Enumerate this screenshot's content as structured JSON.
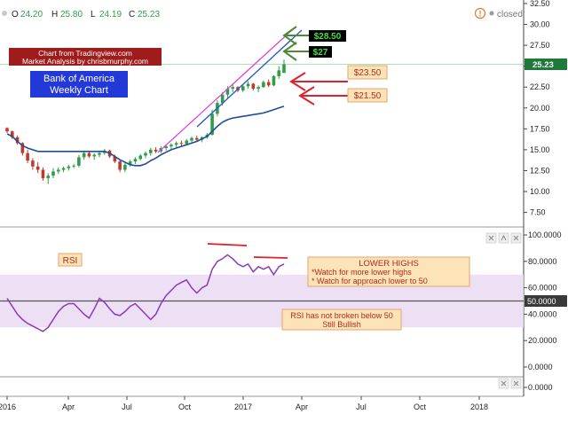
{
  "header": {
    "open_label": "O",
    "open": "24.20",
    "high_label": "H",
    "high": "25.80",
    "low_label": "L",
    "low": "24.19",
    "close_label": "C",
    "close": "25.23",
    "status": "closed",
    "status_icon": "warning-circle-icon"
  },
  "colors": {
    "up": "#2e9e46",
    "down": "#c0392b",
    "ema": "#1f4e99",
    "rsi": "#8b3ab8",
    "rsi_band": "#ead9f2",
    "trend": "#2e58c9",
    "channel": "#e23be0",
    "red_arrow": "#e0202a",
    "green_arrow": "#4d8a34",
    "price_tag": "#1e7a3a"
  },
  "annotations": {
    "credit_line1": "Chart from Tradingview.com",
    "credit_line2": "Market Analysis by chrisbmurphy.com",
    "title_line1": "Bank of America",
    "title_line2": "Weekly Chart",
    "target_high": "$28.50",
    "target_mid": "$27",
    "support_1": "$23.50",
    "support_2": "$21.50",
    "current_price": "25.23",
    "rsi_label": "RSI",
    "rsi_note_title": "LOWER HIGHS",
    "rsi_note_line1": "*Watch for more lower highs",
    "rsi_note_line2": "* Watch for approach lower to 50",
    "rsi_note2_line1": "RSI has not broken below 50",
    "rsi_note2_line2": "Still Bullish",
    "rsi_level_tag": "50.0000"
  },
  "chart_data": {
    "type": "candlestick",
    "title": "Bank of America Weekly Chart",
    "x_tick_labels": [
      "2016",
      "Apr",
      "Jul",
      "Oct",
      "2017",
      "Apr",
      "Jul",
      "Oct",
      "2018"
    ],
    "price_axis": {
      "range": [
        6.5,
        32.5
      ],
      "ticks": [
        "32.50",
        "30.00",
        "27.50",
        "25.00",
        "22.50",
        "20.00",
        "17.50",
        "15.00",
        "12.50",
        "10.00",
        "7.50"
      ]
    },
    "rsi_axis": {
      "range": [
        0,
        100
      ],
      "ticks": [
        "100.0000",
        "80.0000",
        "60.0000",
        "40.0000",
        "20.0000",
        "0.0000"
      ],
      "band": [
        30,
        70
      ],
      "midline": 50
    },
    "extra_axis_ticks": [
      "0.0000"
    ],
    "candles": [
      [
        17.6,
        17.7,
        17.0,
        17.2
      ],
      [
        17.2,
        17.3,
        16.3,
        16.5
      ],
      [
        16.5,
        16.7,
        15.6,
        15.8
      ],
      [
        15.8,
        15.9,
        14.3,
        14.6
      ],
      [
        14.6,
        15.0,
        13.4,
        13.7
      ],
      [
        13.7,
        14.0,
        12.6,
        13.0
      ],
      [
        13.0,
        13.5,
        12.2,
        12.6
      ],
      [
        12.6,
        12.9,
        11.3,
        11.6
      ],
      [
        11.6,
        12.2,
        10.9,
        11.9
      ],
      [
        11.9,
        12.8,
        11.6,
        12.4
      ],
      [
        12.4,
        12.9,
        12.1,
        12.6
      ],
      [
        12.6,
        13.0,
        12.3,
        12.8
      ],
      [
        12.8,
        13.2,
        12.5,
        13.0
      ],
      [
        13.0,
        13.3,
        12.8,
        13.1
      ],
      [
        13.1,
        14.4,
        12.9,
        14.1
      ],
      [
        14.1,
        14.9,
        13.8,
        14.6
      ],
      [
        14.6,
        14.8,
        14.0,
        14.2
      ],
      [
        14.2,
        14.6,
        13.8,
        14.4
      ],
      [
        14.4,
        14.9,
        14.1,
        14.6
      ],
      [
        14.6,
        15.1,
        14.4,
        14.9
      ],
      [
        14.9,
        15.0,
        14.0,
        14.2
      ],
      [
        14.2,
        14.4,
        13.4,
        13.6
      ],
      [
        13.6,
        13.8,
        12.3,
        12.6
      ],
      [
        12.6,
        13.4,
        12.3,
        13.2
      ],
      [
        13.2,
        13.8,
        13.0,
        13.6
      ],
      [
        13.6,
        14.1,
        13.3,
        13.9
      ],
      [
        13.9,
        14.5,
        13.7,
        14.3
      ],
      [
        14.3,
        14.8,
        14.0,
        14.6
      ],
      [
        14.6,
        15.2,
        14.3,
        15.0
      ],
      [
        15.0,
        15.3,
        14.6,
        14.8
      ],
      [
        14.8,
        15.4,
        14.6,
        15.2
      ],
      [
        15.2,
        15.6,
        14.9,
        15.4
      ],
      [
        15.4,
        15.8,
        15.1,
        15.6
      ],
      [
        15.6,
        16.0,
        15.3,
        15.8
      ],
      [
        15.8,
        16.1,
        15.4,
        15.7
      ],
      [
        15.7,
        16.3,
        15.5,
        16.1
      ],
      [
        16.1,
        16.6,
        15.9,
        16.4
      ],
      [
        16.4,
        16.7,
        16.0,
        16.2
      ],
      [
        16.2,
        16.6,
        15.9,
        16.5
      ],
      [
        16.5,
        17.0,
        16.3,
        16.8
      ],
      [
        16.8,
        19.8,
        16.7,
        19.3
      ],
      [
        19.3,
        20.9,
        19.0,
        20.6
      ],
      [
        20.6,
        21.9,
        20.3,
        21.6
      ],
      [
        21.6,
        22.6,
        21.2,
        22.3
      ],
      [
        22.3,
        22.9,
        21.9,
        22.5
      ],
      [
        22.5,
        22.6,
        21.9,
        22.1
      ],
      [
        22.1,
        22.8,
        21.9,
        22.6
      ],
      [
        22.6,
        23.2,
        22.3,
        22.9
      ],
      [
        22.9,
        23.0,
        22.1,
        22.3
      ],
      [
        22.3,
        22.7,
        21.9,
        22.5
      ],
      [
        22.5,
        23.3,
        22.4,
        23.1
      ],
      [
        23.1,
        23.4,
        22.5,
        22.7
      ],
      [
        22.7,
        23.9,
        22.6,
        23.8
      ],
      [
        23.8,
        25.0,
        23.5,
        24.5
      ],
      [
        24.2,
        25.8,
        24.19,
        25.23
      ]
    ],
    "ema": [
      16.9,
      16.6,
      16.0,
      15.5,
      15.2,
      15.0,
      14.8,
      14.8,
      14.8,
      14.8,
      14.8,
      14.8,
      14.8,
      14.8,
      14.8,
      14.8,
      14.8,
      14.8,
      14.8,
      14.8,
      14.6,
      14.2,
      13.8,
      13.5,
      13.2,
      13.1,
      13.1,
      13.3,
      13.7,
      14.0,
      14.4,
      14.7,
      15.0,
      15.2,
      15.4,
      15.6,
      15.8,
      16.0,
      16.3,
      16.6,
      17.2,
      17.8,
      18.3,
      18.6,
      18.8,
      18.9,
      19.0,
      19.1,
      19.2,
      19.3,
      19.4,
      19.6,
      19.8,
      20.0,
      20.2
    ],
    "rsi": [
      52,
      46,
      40,
      36,
      33,
      31,
      29,
      27,
      30,
      36,
      42,
      46,
      48,
      48,
      44,
      40,
      37,
      44,
      52,
      49,
      44,
      40,
      39,
      42,
      46,
      48,
      44,
      40,
      36,
      40,
      48,
      54,
      58,
      62,
      64,
      66,
      60,
      56,
      60,
      62,
      74,
      80,
      82,
      85,
      82,
      78,
      76,
      78,
      72,
      76,
      74,
      76,
      70,
      76,
      78
    ],
    "x_range": [
      0,
      100
    ]
  }
}
